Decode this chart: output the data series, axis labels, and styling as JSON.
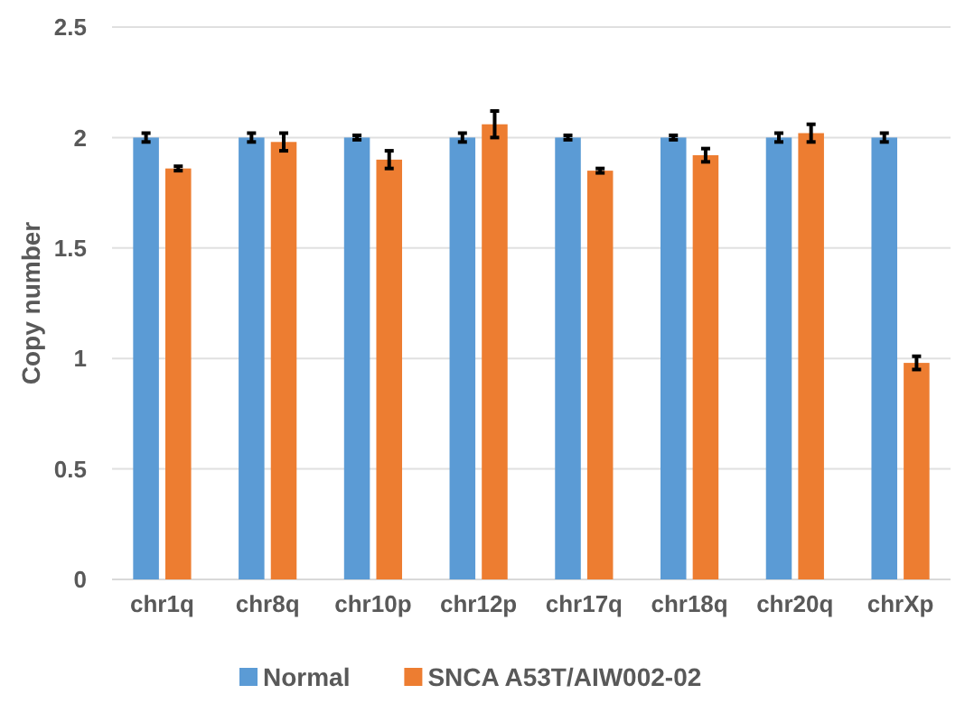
{
  "chart_data": {
    "type": "bar",
    "ylabel": "Copy number",
    "categories": [
      "chr1q",
      "chr8q",
      "chr10p",
      "chr12p",
      "chr17q",
      "chr18q",
      "chr20q",
      "chrXp"
    ],
    "series": [
      {
        "name": "Normal",
        "color": "#5b9bd5",
        "values": [
          2,
          2,
          2,
          2,
          2,
          2,
          2,
          2
        ],
        "errors": [
          0.02,
          0.02,
          0.01,
          0.02,
          0.01,
          0.01,
          0.02,
          0.02
        ]
      },
      {
        "name": "SNCA A53T/AIW002-02",
        "color": "#ed7d31",
        "values": [
          1.86,
          1.98,
          1.9,
          2.06,
          1.85,
          1.92,
          2.02,
          0.98
        ],
        "errors": [
          0.01,
          0.04,
          0.04,
          0.06,
          0.01,
          0.03,
          0.04,
          0.03
        ]
      }
    ],
    "ylim": [
      0,
      2.5
    ],
    "yticks": [
      0,
      {
        "value": 0.5,
        "label": "0.5"
      },
      1,
      {
        "value": 1.5,
        "label": "1.5"
      },
      2,
      {
        "value": 2.5,
        "label": "2.5"
      }
    ],
    "grid": "y",
    "legend": "bottom"
  }
}
